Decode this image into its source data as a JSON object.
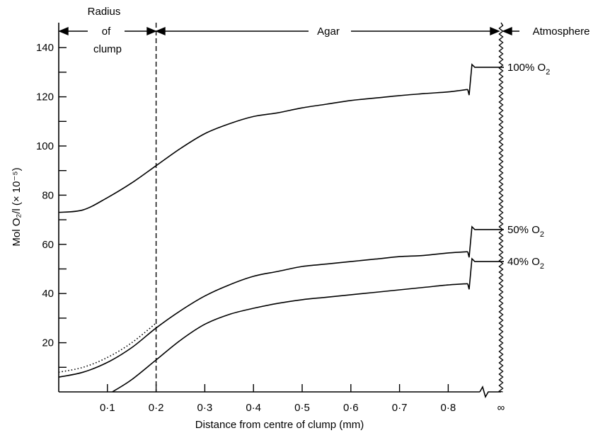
{
  "chart_data": {
    "type": "line",
    "xlabel": "Distance from centre of clump (mm)",
    "ylabel": "Mol O₂/l (× 10⁻⁵)",
    "xlim": [
      0,
      0.9
    ],
    "ylim": [
      0,
      150
    ],
    "x_tick_labels": [
      "0·1",
      "0·2",
      "0·3",
      "0·4",
      "0·5",
      "0·6",
      "0·7",
      "0·8",
      "∞"
    ],
    "x_tick_values": [
      0.1,
      0.2,
      0.3,
      0.4,
      0.5,
      0.6,
      0.7,
      0.8,
      0.9
    ],
    "y_tick_labels": [
      "20",
      "40",
      "60",
      "80",
      "100",
      "120",
      "140"
    ],
    "y_tick_values": [
      20,
      40,
      60,
      80,
      100,
      120,
      140
    ],
    "grid": false,
    "regions": [
      {
        "label_line1": "Radius",
        "label_line2": "of",
        "label_line3": "clump",
        "from": 0,
        "to": 0.2
      },
      {
        "label": "Agar",
        "from": 0.2,
        "to": 0.9
      },
      {
        "label": "Atmosphere",
        "from": 0.9,
        "to": null
      }
    ],
    "clump_radius_mm": 0.2,
    "series": [
      {
        "name": "100% O₂",
        "label_pre": "100% O",
        "label_sub": "2",
        "x": [
          0,
          0.05,
          0.1,
          0.15,
          0.2,
          0.25,
          0.3,
          0.35,
          0.4,
          0.45,
          0.5,
          0.55,
          0.6,
          0.65,
          0.7,
          0.75,
          0.8,
          0.84
        ],
        "y": [
          73,
          74,
          79,
          85,
          92,
          99,
          105,
          109,
          112,
          113.5,
          115.5,
          117,
          118.5,
          119.5,
          120.5,
          121.3,
          122,
          123
        ],
        "atmosphere_value": 132
      },
      {
        "name": "50% O₂",
        "label_pre": "50% O",
        "label_sub": "2",
        "x": [
          0,
          0.05,
          0.1,
          0.15,
          0.2,
          0.25,
          0.3,
          0.35,
          0.4,
          0.45,
          0.5,
          0.55,
          0.6,
          0.65,
          0.7,
          0.75,
          0.8,
          0.84
        ],
        "y": [
          6,
          8,
          12,
          18,
          26,
          33,
          39,
          43.5,
          47,
          49,
          51,
          52,
          53,
          54,
          55,
          55.5,
          56.5,
          57
        ],
        "atmosphere_value": 66
      },
      {
        "name": "40% O₂",
        "label_pre": "40% O",
        "label_sub": "2",
        "x": [
          0.11,
          0.15,
          0.2,
          0.25,
          0.3,
          0.35,
          0.4,
          0.45,
          0.5,
          0.55,
          0.6,
          0.65,
          0.7,
          0.75,
          0.8,
          0.84
        ],
        "y": [
          0,
          5,
          13,
          21,
          27.5,
          31.5,
          34,
          36,
          37.5,
          38.5,
          39.5,
          40.5,
          41.5,
          42.5,
          43.5,
          44
        ],
        "atmosphere_value": 53
      },
      {
        "style": "dotted",
        "x": [
          0,
          0.05,
          0.1,
          0.15,
          0.2
        ],
        "y": [
          8,
          10,
          14,
          20,
          28
        ]
      }
    ]
  }
}
